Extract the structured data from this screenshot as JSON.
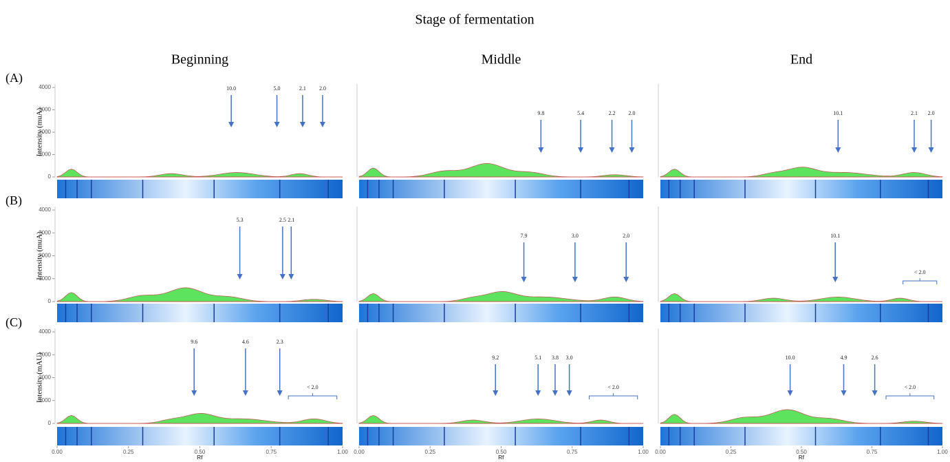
{
  "figure": {
    "title": "Stage of fermentation",
    "columns": [
      "Beginning",
      "Middle",
      "End"
    ],
    "x_label": "Rf",
    "xticks": [
      {
        "value": 0,
        "label": "0.00"
      },
      {
        "value": 0.25,
        "label": "0.25"
      },
      {
        "value": 0.5,
        "label": "0.50"
      },
      {
        "value": 0.75,
        "label": "0.75"
      },
      {
        "value": 1,
        "label": "1.00"
      }
    ],
    "yticks": [
      0,
      1000,
      2000,
      3000,
      4000
    ],
    "rows": [
      {
        "label": "(A)",
        "y_label": "Intensity (muA)",
        "panels": [
          {
            "arrows": [
              {
                "label": "10.0",
                "rf": 0.61
              },
              {
                "label": "5.0",
                "rf": 0.77
              },
              {
                "label": "2.1",
                "rf": 0.86
              },
              {
                "label": "2.0",
                "rf": 0.93
              }
            ],
            "brackets": []
          },
          {
            "arrows": [
              {
                "label": "9.8",
                "rf": 0.64
              },
              {
                "label": "5.4",
                "rf": 0.78
              },
              {
                "label": "2.2",
                "rf": 0.89
              },
              {
                "label": "2.0",
                "rf": 0.96
              }
            ],
            "brackets": []
          },
          {
            "arrows": [
              {
                "label": "10.1",
                "rf": 0.63
              },
              {
                "label": "2.1",
                "rf": 0.9
              },
              {
                "label": "2.0",
                "rf": 0.96
              }
            ],
            "brackets": []
          }
        ]
      },
      {
        "label": "(B)",
        "y_label": "Intensity (muA)",
        "panels": [
          {
            "arrows": [
              {
                "label": "5.3",
                "rf": 0.64
              },
              {
                "label": "2.5",
                "rf": 0.79
              },
              {
                "label": "2.1",
                "rf": 0.82
              }
            ],
            "brackets": []
          },
          {
            "arrows": [
              {
                "label": "7.9",
                "rf": 0.58
              },
              {
                "label": "3.0",
                "rf": 0.76
              },
              {
                "label": "2.0",
                "rf": 0.94
              }
            ],
            "brackets": []
          },
          {
            "arrows": [
              {
                "label": "10.1",
                "rf": 0.62
              }
            ],
            "brackets": [
              {
                "label": "< 2.0",
                "rf_range": [
                  0.86,
                  0.98
                ]
              }
            ]
          }
        ]
      },
      {
        "label": "(C)",
        "y_label": "Intensity (mAU)",
        "panels": [
          {
            "arrows": [
              {
                "label": "9.6",
                "rf": 0.48
              },
              {
                "label": "4.6",
                "rf": 0.66
              },
              {
                "label": "2.3",
                "rf": 0.78
              }
            ],
            "brackets": [
              {
                "label": "< 2.0",
                "rf_range": [
                  0.81,
                  0.98
                ]
              }
            ]
          },
          {
            "arrows": [
              {
                "label": "9.2",
                "rf": 0.48
              },
              {
                "label": "5.1",
                "rf": 0.63
              },
              {
                "label": "3.8",
                "rf": 0.69
              },
              {
                "label": "3.0",
                "rf": 0.74
              }
            ],
            "brackets": [
              {
                "label": "< 2.0",
                "rf_range": [
                  0.81,
                  0.98
                ]
              }
            ]
          },
          {
            "arrows": [
              {
                "label": "10.0",
                "rf": 0.46
              },
              {
                "label": "4.9",
                "rf": 0.65
              },
              {
                "label": "2.6",
                "rf": 0.76
              }
            ],
            "brackets": [
              {
                "label": "< 2.0",
                "rf_range": [
                  0.8,
                  0.97
                ]
              }
            ]
          }
        ]
      }
    ]
  }
}
